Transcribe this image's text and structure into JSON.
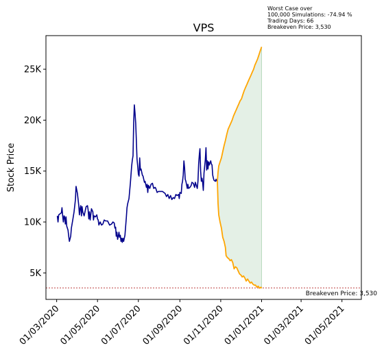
{
  "chart_data": {
    "type": "line",
    "title": "VPS",
    "xlabel": "",
    "ylabel": "Stock Price",
    "ylim": [
      2400,
      28300
    ],
    "x_range_days": [
      -16,
      455
    ],
    "x_ticks": [
      {
        "label": "01/03/2020",
        "day": 0
      },
      {
        "label": "01/05/2020",
        "day": 61
      },
      {
        "label": "01/07/2020",
        "day": 122
      },
      {
        "label": "01/09/2020",
        "day": 184
      },
      {
        "label": "01/11/2020",
        "day": 245
      },
      {
        "label": "01/01/2021",
        "day": 306
      },
      {
        "label": "01/03/2021",
        "day": 365
      },
      {
        "label": "01/05/2021",
        "day": 426
      }
    ],
    "y_ticks": [
      {
        "label": "5K",
        "value": 5000
      },
      {
        "label": "10K",
        "value": 10000
      },
      {
        "label": "15K",
        "value": 15000
      },
      {
        "label": "20K",
        "value": 20000
      },
      {
        "label": "25K",
        "value": 25000
      }
    ],
    "annotation": [
      "Worst Case over",
      "100,000 Simulations: -74.94 %",
      "Trading Days: 66",
      "Breakeven Price: 3,530"
    ],
    "breakeven": {
      "value": 3530,
      "label": "Breakeven Price: 3,530",
      "color": "#b22222"
    },
    "colors": {
      "history": "#00008b",
      "projection": "#ffa500",
      "band": "#2e8b3a"
    },
    "history": [
      [
        1,
        10600
      ],
      [
        2,
        10000
      ],
      [
        3,
        10700
      ],
      [
        5,
        10800
      ],
      [
        7,
        10900
      ],
      [
        8,
        11400
      ],
      [
        9,
        10600
      ],
      [
        10,
        10000
      ],
      [
        11,
        10600
      ],
      [
        12,
        10500
      ],
      [
        13,
        9800
      ],
      [
        14,
        10500
      ],
      [
        15,
        9600
      ],
      [
        17,
        9200
      ],
      [
        18,
        8600
      ],
      [
        19,
        8100
      ],
      [
        21,
        8600
      ],
      [
        22,
        9400
      ],
      [
        24,
        10200
      ],
      [
        26,
        11000
      ],
      [
        28,
        12200
      ],
      [
        29,
        13500
      ],
      [
        31,
        12800
      ],
      [
        33,
        11600
      ],
      [
        34,
        10700
      ],
      [
        35,
        11300
      ],
      [
        36,
        11600
      ],
      [
        37,
        10600
      ],
      [
        38,
        11500
      ],
      [
        39,
        11000
      ],
      [
        41,
        10600
      ],
      [
        43,
        11200
      ],
      [
        44,
        11500
      ],
      [
        46,
        11600
      ],
      [
        47,
        11200
      ],
      [
        48,
        10300
      ],
      [
        49,
        11000
      ],
      [
        50,
        10200
      ],
      [
        52,
        11300
      ],
      [
        54,
        11000
      ],
      [
        55,
        10200
      ],
      [
        56,
        10600
      ],
      [
        58,
        10500
      ],
      [
        60,
        10700
      ],
      [
        61,
        10300
      ],
      [
        62,
        10200
      ],
      [
        63,
        9700
      ],
      [
        65,
        10000
      ],
      [
        67,
        9700
      ],
      [
        69,
        9800
      ],
      [
        71,
        10200
      ],
      [
        73,
        10100
      ],
      [
        76,
        10100
      ],
      [
        79,
        9700
      ],
      [
        82,
        9800
      ],
      [
        84,
        10000
      ],
      [
        86,
        9900
      ],
      [
        87,
        9400
      ],
      [
        88,
        9500
      ],
      [
        89,
        8600
      ],
      [
        90,
        9000
      ],
      [
        91,
        8300
      ],
      [
        92,
        8600
      ],
      [
        93,
        9000
      ],
      [
        94,
        8500
      ],
      [
        95,
        8700
      ],
      [
        96,
        8100
      ],
      [
        97,
        8400
      ],
      [
        98,
        8000
      ],
      [
        99,
        8400
      ],
      [
        100,
        8100
      ],
      [
        102,
        8700
      ],
      [
        104,
        10400
      ],
      [
        105,
        11400
      ],
      [
        106,
        11800
      ],
      [
        108,
        12300
      ],
      [
        110,
        13800
      ],
      [
        112,
        15500
      ],
      [
        113,
        16100
      ],
      [
        114,
        16500
      ],
      [
        115,
        19600
      ],
      [
        116,
        21500
      ],
      [
        117,
        20700
      ],
      [
        118,
        19700
      ],
      [
        119,
        18100
      ],
      [
        120,
        16200
      ],
      [
        121,
        15500
      ],
      [
        122,
        14700
      ],
      [
        123,
        14500
      ],
      [
        124,
        16300
      ],
      [
        125,
        15100
      ],
      [
        126,
        15200
      ],
      [
        128,
        14600
      ],
      [
        129,
        14500
      ],
      [
        131,
        13900
      ],
      [
        132,
        14000
      ],
      [
        134,
        13400
      ],
      [
        135,
        13700
      ],
      [
        136,
        12900
      ],
      [
        137,
        13600
      ],
      [
        139,
        13300
      ],
      [
        141,
        13700
      ],
      [
        143,
        13800
      ],
      [
        145,
        13300
      ],
      [
        147,
        13400
      ],
      [
        148,
        13300
      ],
      [
        150,
        12900
      ],
      [
        152,
        13000
      ],
      [
        158,
        13000
      ],
      [
        162,
        12800
      ],
      [
        164,
        12500
      ],
      [
        166,
        12700
      ],
      [
        168,
        12300
      ],
      [
        170,
        12600
      ],
      [
        172,
        12200
      ],
      [
        174,
        12400
      ],
      [
        176,
        12300
      ],
      [
        178,
        12700
      ],
      [
        180,
        12600
      ],
      [
        182,
        12700
      ],
      [
        183,
        12300
      ],
      [
        184,
        12900
      ],
      [
        186,
        12800
      ],
      [
        187,
        13700
      ],
      [
        188,
        14000
      ],
      [
        189,
        14600
      ],
      [
        190,
        16000
      ],
      [
        191,
        15300
      ],
      [
        192,
        14200
      ],
      [
        193,
        14000
      ],
      [
        195,
        13300
      ],
      [
        196,
        13700
      ],
      [
        197,
        13300
      ],
      [
        199,
        13400
      ],
      [
        201,
        13600
      ],
      [
        202,
        13900
      ],
      [
        204,
        13800
      ],
      [
        206,
        13400
      ],
      [
        207,
        13900
      ],
      [
        209,
        13500
      ],
      [
        210,
        13300
      ],
      [
        211,
        14000
      ],
      [
        212,
        15700
      ],
      [
        213,
        16600
      ],
      [
        214,
        17200
      ],
      [
        215,
        15000
      ],
      [
        216,
        14000
      ],
      [
        217,
        14300
      ],
      [
        218,
        13900
      ],
      [
        219,
        13100
      ],
      [
        220,
        14800
      ],
      [
        221,
        15500
      ],
      [
        222,
        16100
      ],
      [
        223,
        17300
      ],
      [
        224,
        15100
      ],
      [
        225,
        16000
      ],
      [
        226,
        15200
      ],
      [
        227,
        15900
      ],
      [
        228,
        15600
      ],
      [
        230,
        16000
      ],
      [
        231,
        15700
      ],
      [
        232,
        15600
      ],
      [
        233,
        14600
      ],
      [
        234,
        14300
      ],
      [
        235,
        14100
      ],
      [
        237,
        14000
      ],
      [
        238,
        14200
      ],
      [
        239,
        14000
      ]
    ],
    "projection_upper": [
      [
        240,
        14000
      ],
      [
        241,
        14900
      ],
      [
        242,
        15500
      ],
      [
        244,
        15900
      ],
      [
        246,
        16300
      ],
      [
        248,
        16900
      ],
      [
        250,
        17500
      ],
      [
        252,
        18000
      ],
      [
        254,
        18600
      ],
      [
        256,
        19100
      ],
      [
        258,
        19400
      ],
      [
        260,
        19700
      ],
      [
        262,
        20000
      ],
      [
        264,
        20400
      ],
      [
        266,
        20700
      ],
      [
        268,
        21000
      ],
      [
        270,
        21300
      ],
      [
        272,
        21600
      ],
      [
        274,
        21900
      ],
      [
        276,
        22100
      ],
      [
        278,
        22500
      ],
      [
        280,
        22900
      ],
      [
        282,
        23200
      ],
      [
        284,
        23500
      ],
      [
        286,
        23800
      ],
      [
        288,
        24100
      ],
      [
        290,
        24400
      ],
      [
        292,
        24700
      ],
      [
        294,
        25000
      ],
      [
        296,
        25400
      ],
      [
        298,
        25700
      ],
      [
        300,
        26000
      ],
      [
        302,
        26400
      ],
      [
        304,
        26800
      ],
      [
        306,
        27200
      ]
    ],
    "projection_lower": [
      [
        240,
        14000
      ],
      [
        241,
        11800
      ],
      [
        242,
        10700
      ],
      [
        244,
        10000
      ],
      [
        246,
        9400
      ],
      [
        248,
        8500
      ],
      [
        250,
        8100
      ],
      [
        252,
        7500
      ],
      [
        253,
        6700
      ],
      [
        255,
        6500
      ],
      [
        257,
        6400
      ],
      [
        259,
        6200
      ],
      [
        261,
        6300
      ],
      [
        263,
        6000
      ],
      [
        265,
        5400
      ],
      [
        267,
        5600
      ],
      [
        269,
        5500
      ],
      [
        271,
        5200
      ],
      [
        273,
        4900
      ],
      [
        275,
        4800
      ],
      [
        277,
        4600
      ],
      [
        279,
        4700
      ],
      [
        281,
        4500
      ],
      [
        283,
        4200
      ],
      [
        285,
        4400
      ],
      [
        287,
        4200
      ],
      [
        289,
        4000
      ],
      [
        291,
        4100
      ],
      [
        293,
        3900
      ],
      [
        295,
        3800
      ],
      [
        297,
        3800
      ],
      [
        299,
        3600
      ],
      [
        301,
        3700
      ],
      [
        303,
        3500
      ],
      [
        305,
        3600
      ],
      [
        306,
        3500
      ]
    ]
  }
}
